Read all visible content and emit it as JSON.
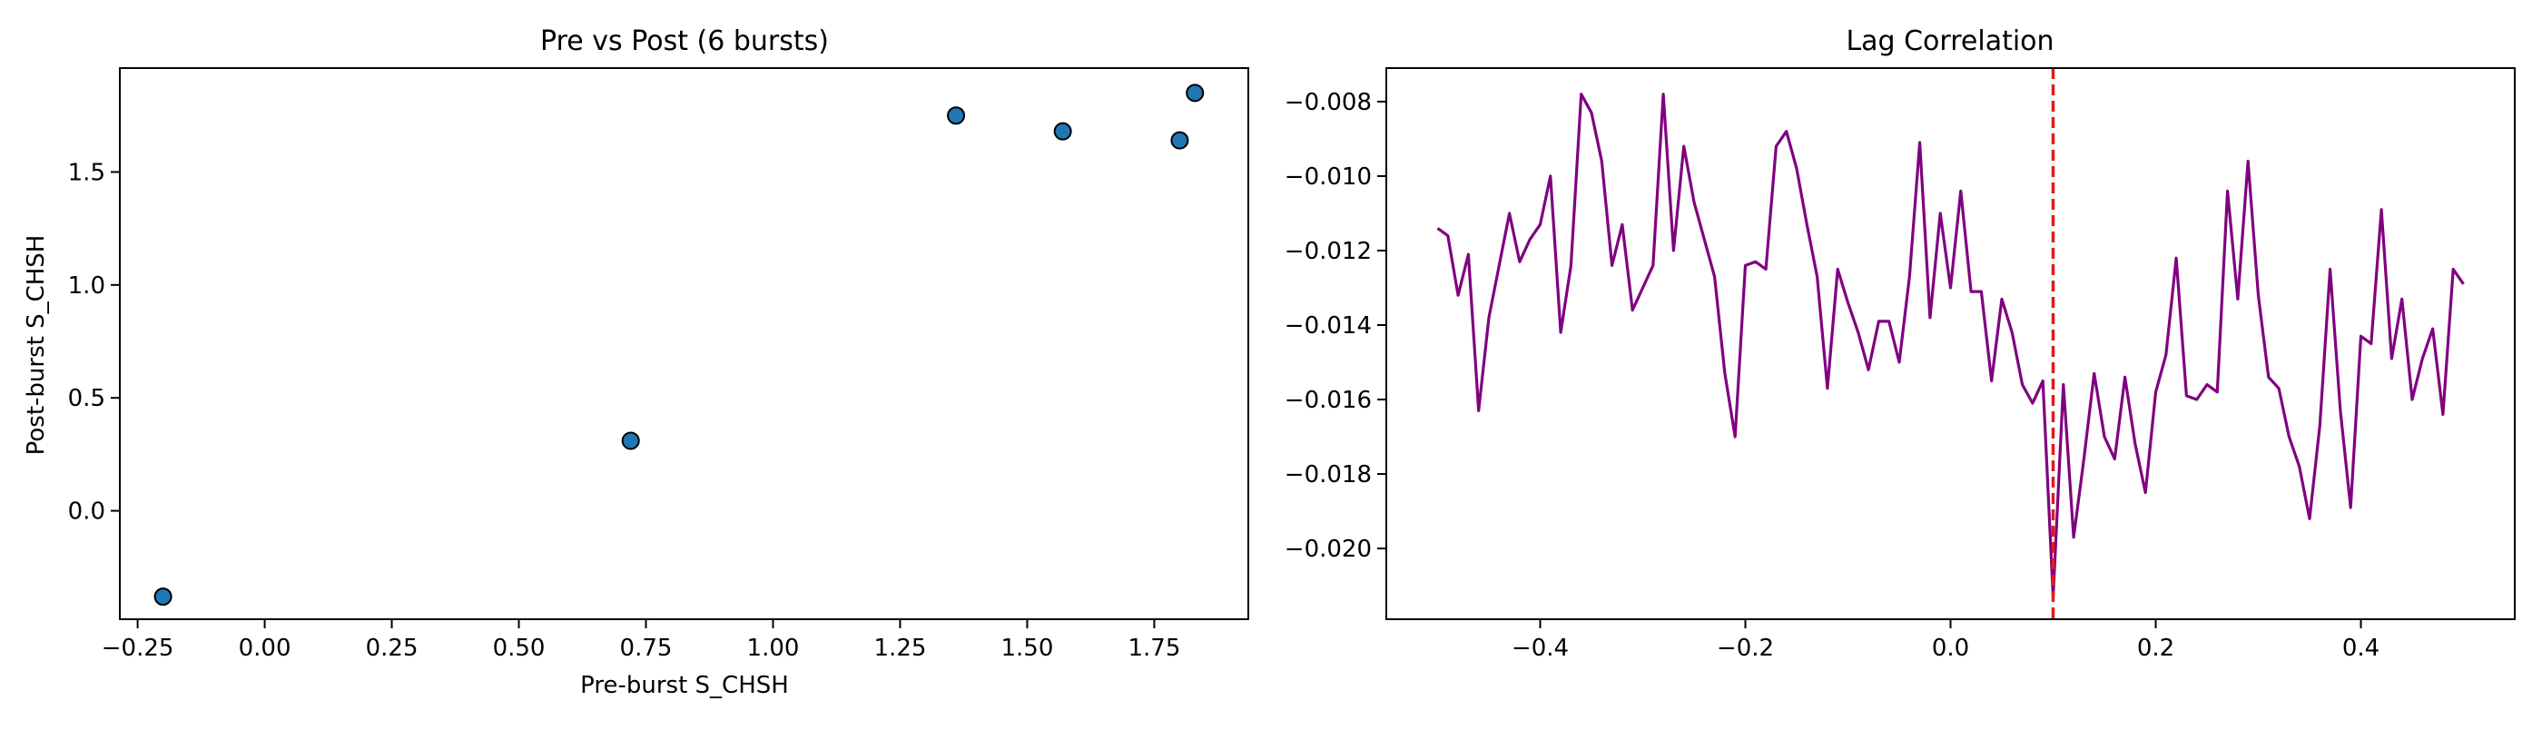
{
  "chart_data": [
    {
      "type": "scatter",
      "title": "Pre vs Post (6 bursts)",
      "xlabel": "Pre-burst S_CHSH",
      "ylabel": "Post-burst S_CHSH",
      "xlim": [
        -0.285,
        1.935
      ],
      "ylim": [
        -0.48,
        1.96
      ],
      "xticks": [
        -0.25,
        0.0,
        0.25,
        0.5,
        0.75,
        1.0,
        1.25,
        1.5,
        1.75
      ],
      "xtick_labels": [
        "−0.25",
        "0.00",
        "0.25",
        "0.50",
        "0.75",
        "1.00",
        "1.25",
        "1.50",
        "1.75"
      ],
      "yticks": [
        0.0,
        0.5,
        1.0,
        1.5
      ],
      "ytick_labels": [
        "0.0",
        "0.5",
        "1.0",
        "1.5"
      ],
      "points": [
        {
          "x": -0.2,
          "y": -0.38
        },
        {
          "x": 0.72,
          "y": 0.31
        },
        {
          "x": 1.36,
          "y": 1.75
        },
        {
          "x": 1.57,
          "y": 1.68
        },
        {
          "x": 1.8,
          "y": 1.64
        },
        {
          "x": 1.83,
          "y": 1.85
        }
      ],
      "marker_color": "#1f77b4",
      "marker_edge": "#000000",
      "grid": false
    },
    {
      "type": "line",
      "title": "Lag Correlation",
      "xlabel": "",
      "ylabel": "",
      "xlim": [
        -0.55,
        0.55
      ],
      "ylim": [
        -0.0219,
        -0.0071
      ],
      "xticks": [
        -0.4,
        -0.2,
        0.0,
        0.2,
        0.4
      ],
      "xtick_labels": [
        "−0.4",
        "−0.2",
        "0.0",
        "0.2",
        "0.4"
      ],
      "yticks": [
        -0.02,
        -0.018,
        -0.016,
        -0.014,
        -0.012,
        -0.01,
        -0.008
      ],
      "ytick_labels": [
        "−0.020",
        "−0.018",
        "−0.016",
        "−0.014",
        "−0.012",
        "−0.010",
        "−0.008"
      ],
      "series": [
        {
          "color": "#800080",
          "x_start": -0.5,
          "x_step": 0.01,
          "values": [
            -0.0114,
            -0.0116,
            -0.0132,
            -0.0121,
            -0.0163,
            -0.0138,
            -0.0124,
            -0.011,
            -0.0123,
            -0.0117,
            -0.0113,
            -0.01,
            -0.0142,
            -0.0124,
            -0.0078,
            -0.0083,
            -0.0096,
            -0.0124,
            -0.0113,
            -0.0136,
            -0.013,
            -0.0124,
            -0.0078,
            -0.012,
            -0.0092,
            -0.0107,
            -0.0117,
            -0.0127,
            -0.0153,
            -0.017,
            -0.0124,
            -0.0123,
            -0.0125,
            -0.0092,
            -0.0088,
            -0.0098,
            -0.0113,
            -0.0127,
            -0.0157,
            -0.0125,
            -0.0134,
            -0.0142,
            -0.0152,
            -0.0139,
            -0.0139,
            -0.015,
            -0.0127,
            -0.0091,
            -0.0138,
            -0.011,
            -0.013,
            -0.0104,
            -0.0131,
            -0.0131,
            -0.0155,
            -0.0133,
            -0.0142,
            -0.0156,
            -0.0161,
            -0.0155,
            -0.0213,
            -0.0156,
            -0.0197,
            -0.0176,
            -0.0153,
            -0.017,
            -0.0176,
            -0.0154,
            -0.0172,
            -0.0185,
            -0.0158,
            -0.0148,
            -0.0122,
            -0.0159,
            -0.016,
            -0.0156,
            -0.0158,
            -0.0104,
            -0.0133,
            -0.0096,
            -0.0132,
            -0.0154,
            -0.0157,
            -0.017,
            -0.0178,
            -0.0192,
            -0.0167,
            -0.0125,
            -0.0163,
            -0.0189,
            -0.0143,
            -0.0145,
            -0.0109,
            -0.0149,
            -0.0133,
            -0.016,
            -0.0149,
            -0.0141,
            -0.0164,
            -0.0125,
            -0.0129
          ]
        }
      ],
      "vline": {
        "x": 0.1,
        "color": "#e31a1c",
        "style": "dashed"
      },
      "grid": false
    }
  ]
}
